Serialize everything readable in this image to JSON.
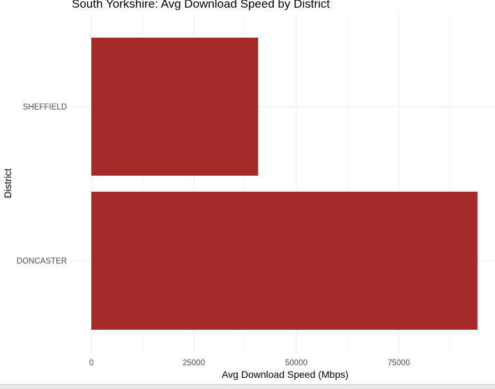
{
  "chart_data": {
    "type": "bar",
    "orientation": "horizontal",
    "title": "South Yorkshire: Avg Download Speed by District",
    "xlabel": "Avg Download Speed (Mbps)",
    "ylabel": "District",
    "categories": [
      "SHEFFIELD",
      "DONCASTER"
    ],
    "values": [
      40700,
      94200
    ],
    "xlim": [
      0,
      100000
    ],
    "x_ticks": [
      0,
      25000,
      50000,
      75000
    ],
    "x_tick_labels": [
      "0",
      "25000",
      "50000",
      "75000"
    ],
    "bar_color": "#a52a2a",
    "grid": true,
    "legend": "none"
  }
}
